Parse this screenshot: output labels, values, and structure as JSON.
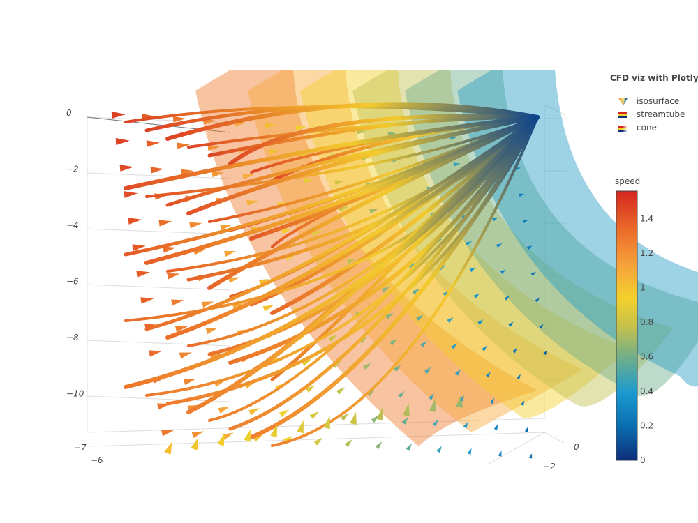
{
  "chart_data": {
    "type": "3d-cone-streamtube-isosurface",
    "title": "",
    "legend": {
      "title": "CFD viz with Plotly",
      "placement": "top-right",
      "entries": [
        {
          "name": "isosurface",
          "icon": "isosurface-icon"
        },
        {
          "name": "streamtube",
          "icon": "streamtube-icon"
        },
        {
          "name": "cone",
          "icon": "cone-icon"
        }
      ]
    },
    "colorbar": {
      "title": "speed",
      "range": [
        0,
        1.56
      ],
      "ticks": [
        0,
        0.2,
        0.4,
        0.6,
        0.8,
        1,
        1.2,
        1.4
      ],
      "tick_labels": [
        "0",
        "0.2",
        "0.4",
        "0.6",
        "0.8",
        "1",
        "1.2",
        "1.4"
      ],
      "colorscale": [
        "#0d2f7a",
        "#0a6fb0",
        "#1b9ad0",
        "#6fae8c",
        "#c7c24a",
        "#f2d12d",
        "#f6a43a",
        "#ea6a2a",
        "#d4251f"
      ]
    },
    "axes": {
      "z_ticks": [
        "0",
        "−2",
        "−4",
        "−6",
        "−8",
        "−10"
      ],
      "x_ticks": [
        "−7",
        "−6"
      ],
      "y_ticks": [
        "0",
        "−2"
      ],
      "grid": true
    },
    "isosurface": {
      "layers": 6,
      "color_min": "#0d5a8a",
      "color_max": "#f6a43a"
    },
    "streamtube": {
      "count": 40,
      "converge_to": "top-right"
    },
    "cone": {
      "grid_columns": 14,
      "grid_rows": 13
    }
  }
}
